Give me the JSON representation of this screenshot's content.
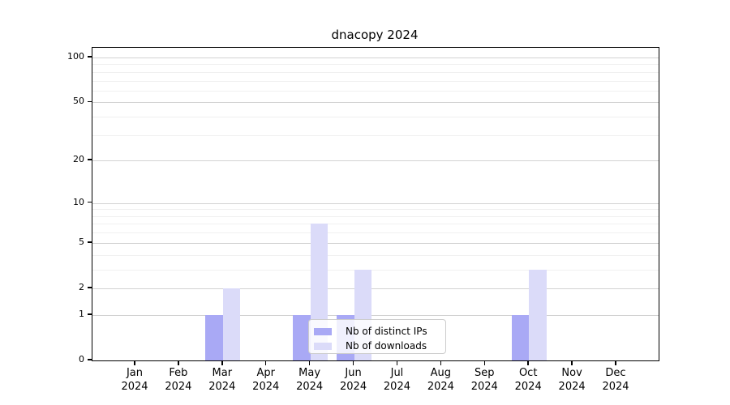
{
  "figure": {
    "title": "dnacopy 2024"
  },
  "chart_data": {
    "type": "bar",
    "title": "dnacopy 2024",
    "categories": [
      "Jan",
      "Feb",
      "Mar",
      "Apr",
      "May",
      "Jun",
      "Jul",
      "Aug",
      "Sep",
      "Oct",
      "Nov",
      "Dec"
    ],
    "year_label": "2024",
    "series": [
      {
        "name": "Nb of distinct IPs",
        "color": "#a9a9f5",
        "values": [
          0,
          0,
          1,
          0,
          1,
          1,
          0,
          0,
          0,
          1,
          0,
          0
        ]
      },
      {
        "name": "Nb of downloads",
        "color": "#dbdbf9",
        "values": [
          0,
          0,
          2,
          0,
          7,
          3,
          0,
          0,
          0,
          3,
          0,
          0
        ]
      }
    ],
    "xlabel": "",
    "ylabel": "",
    "yscale": "log1p",
    "yticks": [
      0,
      1,
      2,
      5,
      10,
      20,
      50,
      100
    ],
    "minor_yticks": [
      3,
      4,
      6,
      7,
      8,
      9,
      30,
      40,
      60,
      70,
      80,
      90
    ],
    "ylim": [
      0,
      116
    ],
    "grid": true,
    "legend_position": "lower center"
  },
  "colors": {
    "major_grid": "#d2d2d2",
    "minor_grid": "#f0f0f0",
    "frame": "#000000",
    "background": "#ffffff",
    "legend_border": "#cccccc"
  }
}
